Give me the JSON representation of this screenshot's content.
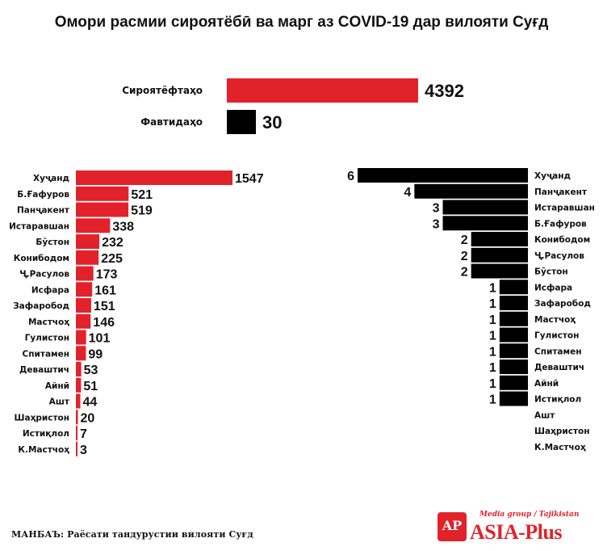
{
  "title": "Омори расмии сироятёбӣ ва марг аз COVID-19 дар вилояти Суғд",
  "colors": {
    "infected": "#e2222b",
    "deaths": "#000000",
    "brand": "#e2222b"
  },
  "chart_data": [
    {
      "type": "bar",
      "orientation": "horizontal",
      "title": "",
      "categories": [
        "Сироятёфтаҳо",
        "Фавтидаҳо"
      ],
      "values": [
        4392,
        30
      ],
      "colors": [
        "#e2222b",
        "#000000"
      ]
    },
    {
      "type": "bar",
      "orientation": "horizontal",
      "title": "",
      "series": [
        {
          "name": "Сироятёфтаҳо",
          "color": "#e2222b"
        }
      ],
      "categories": [
        "Хуҷанд",
        "Б.Ғафуров",
        "Панҷакент",
        "Истаравшан",
        "Бӯстон",
        "Конибодом",
        "Ҷ.Расулов",
        "Исфара",
        "Зафаробод",
        "Мастчоҳ",
        "Гулистон",
        "Спитамен",
        "Деваштич",
        "Айнӣ",
        "Ашт",
        "Шаҳристон",
        "Истиқлол",
        "К.Мастчоҳ"
      ],
      "values": [
        1547,
        521,
        519,
        338,
        232,
        225,
        173,
        161,
        151,
        146,
        101,
        99,
        53,
        51,
        44,
        20,
        7,
        3
      ]
    },
    {
      "type": "bar",
      "orientation": "horizontal",
      "direction": "right-to-left",
      "title": "",
      "series": [
        {
          "name": "Фавтидаҳо",
          "color": "#000000"
        }
      ],
      "categories": [
        "Хуҷанд",
        "Панҷакент",
        "Истаравшан",
        "Б.Ғафуров",
        "Конибодом",
        "Ҷ.Расулов",
        "Бӯстон",
        "Исфара",
        "Зафаробод",
        "Мастчоҳ",
        "Гулистон",
        "Спитамен",
        "Деваштич",
        "Айнӣ",
        "Истиқлол",
        "Ашт",
        "Шаҳристон",
        "К.Мастчоҳ"
      ],
      "values": [
        6,
        4,
        3,
        3,
        2,
        2,
        2,
        1,
        1,
        1,
        1,
        1,
        1,
        1,
        1,
        null,
        null,
        null
      ]
    }
  ],
  "source": "МАНБАЪ: Раёсати тандурустии вилояти  Суғд",
  "logo": {
    "mark": "AP",
    "tagline": "Media group / Tajikistan",
    "name": "ASIA-Plus"
  }
}
